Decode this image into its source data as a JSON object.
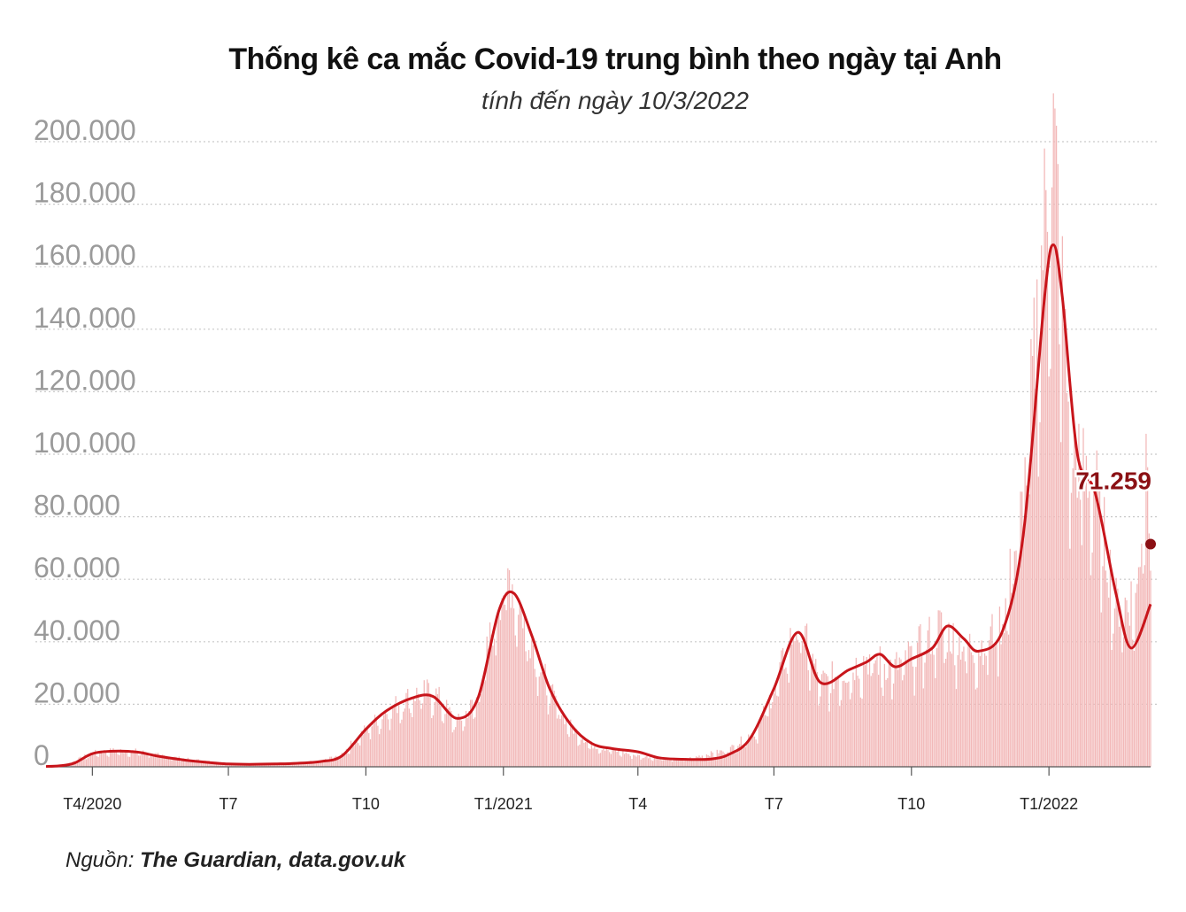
{
  "chart_data": {
    "type": "bar",
    "title": "Thống kê ca mắc Covid-19 trung bình theo ngày tại Anh",
    "subtitle": "tính đến ngày 10/3/2022",
    "ylim": [
      0,
      200000
    ],
    "yticks": [
      0,
      20000,
      40000,
      60000,
      80000,
      100000,
      120000,
      140000,
      160000,
      180000,
      200000
    ],
    "ytick_labels": [
      "0",
      "20.000",
      "40.000",
      "60.000",
      "80.000",
      "100.000",
      "120.000",
      "140.000",
      "160.000",
      "180.000",
      "200.000"
    ],
    "x_range": [
      "2020-03-01",
      "2022-03-10"
    ],
    "xticks": [
      "2020-04-01",
      "2020-07-01",
      "2020-10-01",
      "2021-01-01",
      "2021-04-01",
      "2021-07-01",
      "2021-10-01",
      "2022-01-01"
    ],
    "xtick_labels": [
      "T4/2020",
      "T7",
      "T10",
      "T1/2021",
      "T4",
      "T7",
      "T10",
      "T1/2022"
    ],
    "grid": true,
    "series": [
      {
        "kind": "daily_bars",
        "color": "#f2b8b8",
        "points": [
          [
            "2020-03-01",
            100
          ],
          [
            "2020-03-15",
            800
          ],
          [
            "2020-04-01",
            4500
          ],
          [
            "2020-04-15",
            5200
          ],
          [
            "2020-05-01",
            5000
          ],
          [
            "2020-05-15",
            3800
          ],
          [
            "2020-06-01",
            2600
          ],
          [
            "2020-07-01",
            1100
          ],
          [
            "2020-08-01",
            900
          ],
          [
            "2020-09-01",
            1800
          ],
          [
            "2020-09-15",
            4200
          ],
          [
            "2020-10-01",
            12000
          ],
          [
            "2020-10-15",
            18000
          ],
          [
            "2020-11-01",
            23000
          ],
          [
            "2020-11-15",
            24500
          ],
          [
            "2020-12-01",
            14000
          ],
          [
            "2020-12-15",
            22000
          ],
          [
            "2020-12-29",
            55000
          ],
          [
            "2021-01-05",
            62000
          ],
          [
            "2021-01-15",
            48000
          ],
          [
            "2021-02-01",
            24000
          ],
          [
            "2021-02-15",
            13000
          ],
          [
            "2021-03-01",
            7000
          ],
          [
            "2021-04-01",
            3500
          ],
          [
            "2021-05-01",
            2300
          ],
          [
            "2021-06-01",
            5500
          ],
          [
            "2021-06-20",
            12000
          ],
          [
            "2021-07-01",
            25000
          ],
          [
            "2021-07-17",
            47000
          ],
          [
            "2021-08-01",
            27000
          ],
          [
            "2021-08-20",
            31000
          ],
          [
            "2021-09-01",
            35000
          ],
          [
            "2021-09-20",
            32000
          ],
          [
            "2021-10-01",
            36000
          ],
          [
            "2021-10-20",
            45000
          ],
          [
            "2021-11-01",
            40000
          ],
          [
            "2021-11-15",
            38000
          ],
          [
            "2021-12-01",
            47000
          ],
          [
            "2021-12-15",
            85000
          ],
          [
            "2021-12-29",
            175000
          ],
          [
            "2022-01-04",
            205000
          ],
          [
            "2022-01-15",
            105000
          ],
          [
            "2022-02-01",
            90000
          ],
          [
            "2022-02-15",
            52000
          ],
          [
            "2022-03-01",
            55000
          ],
          [
            "2022-03-08",
            110000
          ],
          [
            "2022-03-10",
            70000
          ]
        ]
      },
      {
        "kind": "rolling_average_line",
        "color": "#c8151b",
        "points": [
          [
            "2020-03-01",
            100
          ],
          [
            "2020-03-10",
            300
          ],
          [
            "2020-03-20",
            1200
          ],
          [
            "2020-04-01",
            4200
          ],
          [
            "2020-04-15",
            5000
          ],
          [
            "2020-05-01",
            4700
          ],
          [
            "2020-05-15",
            3400
          ],
          [
            "2020-06-01",
            2200
          ],
          [
            "2020-06-15",
            1500
          ],
          [
            "2020-07-01",
            900
          ],
          [
            "2020-07-15",
            800
          ],
          [
            "2020-08-01",
            900
          ],
          [
            "2020-08-15",
            1100
          ],
          [
            "2020-09-01",
            1700
          ],
          [
            "2020-09-15",
            3500
          ],
          [
            "2020-10-01",
            12000
          ],
          [
            "2020-10-15",
            18000
          ],
          [
            "2020-11-01",
            22000
          ],
          [
            "2020-11-15",
            22500
          ],
          [
            "2020-12-01",
            15500
          ],
          [
            "2020-12-15",
            22000
          ],
          [
            "2020-12-29",
            50000
          ],
          [
            "2021-01-08",
            55500
          ],
          [
            "2021-01-20",
            42000
          ],
          [
            "2021-02-01",
            25000
          ],
          [
            "2021-02-15",
            13500
          ],
          [
            "2021-03-01",
            7500
          ],
          [
            "2021-03-15",
            5800
          ],
          [
            "2021-04-01",
            4800
          ],
          [
            "2021-04-15",
            2900
          ],
          [
            "2021-05-01",
            2400
          ],
          [
            "2021-05-20",
            2500
          ],
          [
            "2021-06-01",
            4000
          ],
          [
            "2021-06-15",
            9000
          ],
          [
            "2021-07-01",
            25000
          ],
          [
            "2021-07-17",
            43000
          ],
          [
            "2021-08-01",
            27000
          ],
          [
            "2021-08-20",
            31000
          ],
          [
            "2021-09-01",
            33500
          ],
          [
            "2021-09-10",
            36000
          ],
          [
            "2021-09-20",
            32000
          ],
          [
            "2021-10-01",
            34500
          ],
          [
            "2021-10-15",
            38000
          ],
          [
            "2021-10-25",
            45000
          ],
          [
            "2021-11-05",
            41000
          ],
          [
            "2021-11-15",
            37000
          ],
          [
            "2021-12-01",
            43500
          ],
          [
            "2021-12-15",
            75000
          ],
          [
            "2021-12-29",
            150000
          ],
          [
            "2022-01-04",
            167000
          ],
          [
            "2022-01-10",
            150000
          ],
          [
            "2022-01-20",
            100000
          ],
          [
            "2022-02-01",
            87500
          ],
          [
            "2022-02-15",
            55000
          ],
          [
            "2022-02-25",
            38000
          ],
          [
            "2022-03-10",
            52000
          ]
        ]
      }
    ],
    "latest_point": {
      "date": "2022-03-10",
      "value": 71259,
      "color": "#8b1014"
    },
    "latest_label": "71.259"
  },
  "source": {
    "prefix": "Nguồn: ",
    "name": "The Guardian, data.gov.uk"
  }
}
